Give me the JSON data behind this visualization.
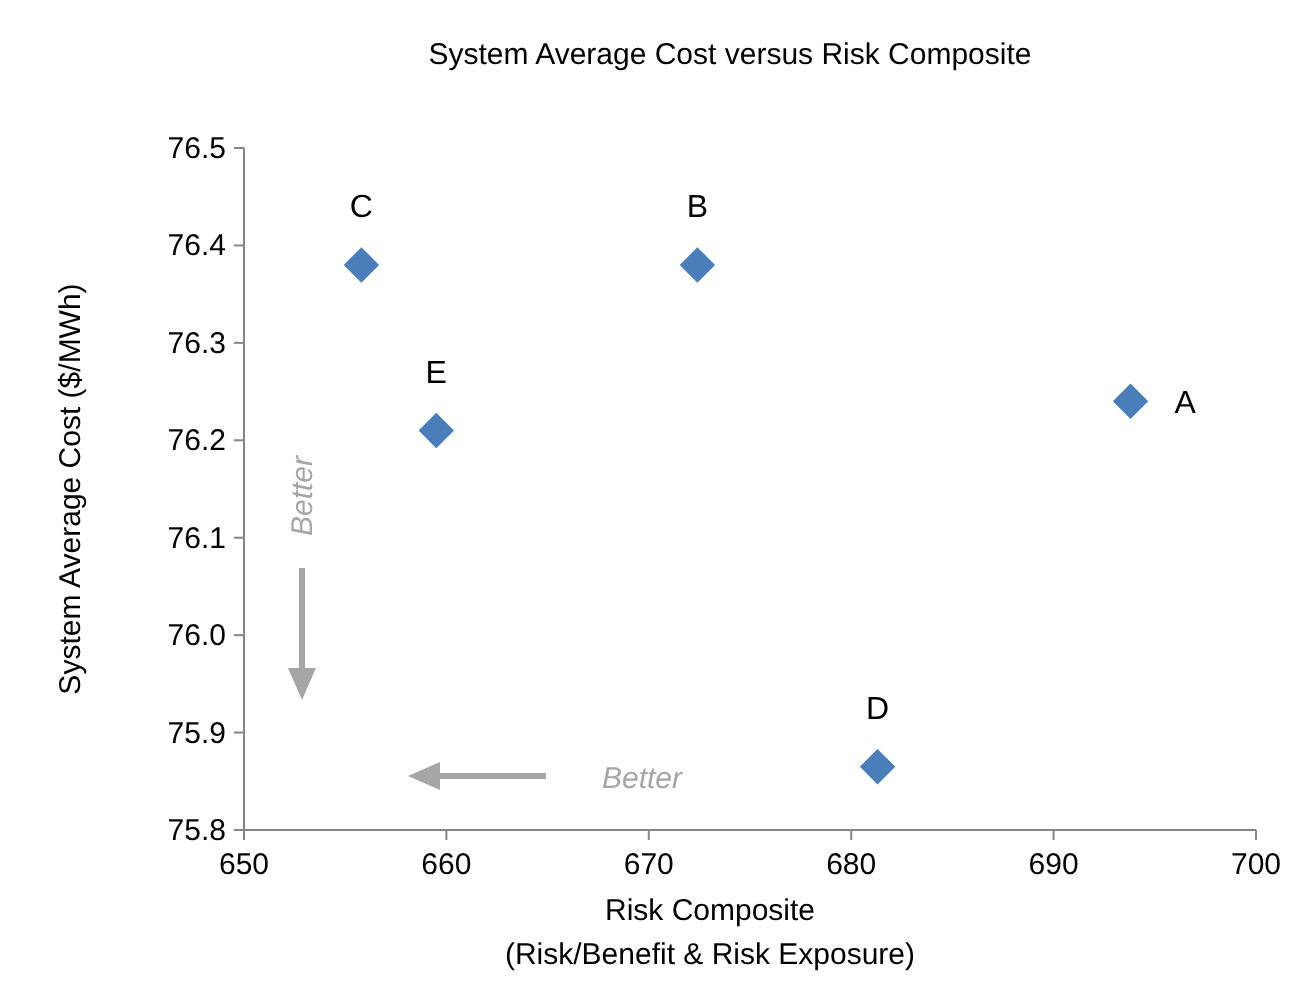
{
  "chart_data": {
    "type": "scatter",
    "title": "System Average Cost versus Risk Composite",
    "xlabel": "Risk Composite\n(Risk/Benefit & Risk Exposure)",
    "ylabel": "System Average Cost ($/MWh)",
    "series": [
      {
        "color": "#4a7ebb",
        "x": [
          693.8,
          672.4,
          655.8,
          681.3,
          659.5
        ],
        "values": [
          76.24,
          76.38,
          76.38,
          75.865,
          76.21
        ]
      }
    ],
    "xlim": [
      650,
      700
    ],
    "xticks": [
      650,
      660,
      670,
      680,
      690,
      700
    ],
    "ylim": [
      75.8,
      76.5
    ],
    "yticks": [
      {
        "value": 75.8,
        "label": "75.8"
      },
      {
        "value": 75.9,
        "label": "75.9"
      },
      {
        "value": 76.0,
        "label": "76.0"
      },
      {
        "value": 76.1,
        "label": "76.1"
      },
      {
        "value": 76.2,
        "label": "76.2"
      },
      {
        "value": 76.3,
        "label": "76.3"
      },
      {
        "value": 76.4,
        "label": "76.4"
      },
      {
        "value": 76.5,
        "label": "76.5"
      }
    ],
    "marker": "diamond",
    "annotations": [
      {
        "text": "A",
        "x": 693.8,
        "y": 76.24
      },
      {
        "text": "B",
        "x": 672.4,
        "y": 76.38
      },
      {
        "text": "C",
        "x": 655.8,
        "y": 76.38
      },
      {
        "text": "D",
        "x": 681.3,
        "y": 75.865
      },
      {
        "text": "E",
        "x": 659.5,
        "y": 76.21
      },
      "Better",
      "Better"
    ]
  }
}
